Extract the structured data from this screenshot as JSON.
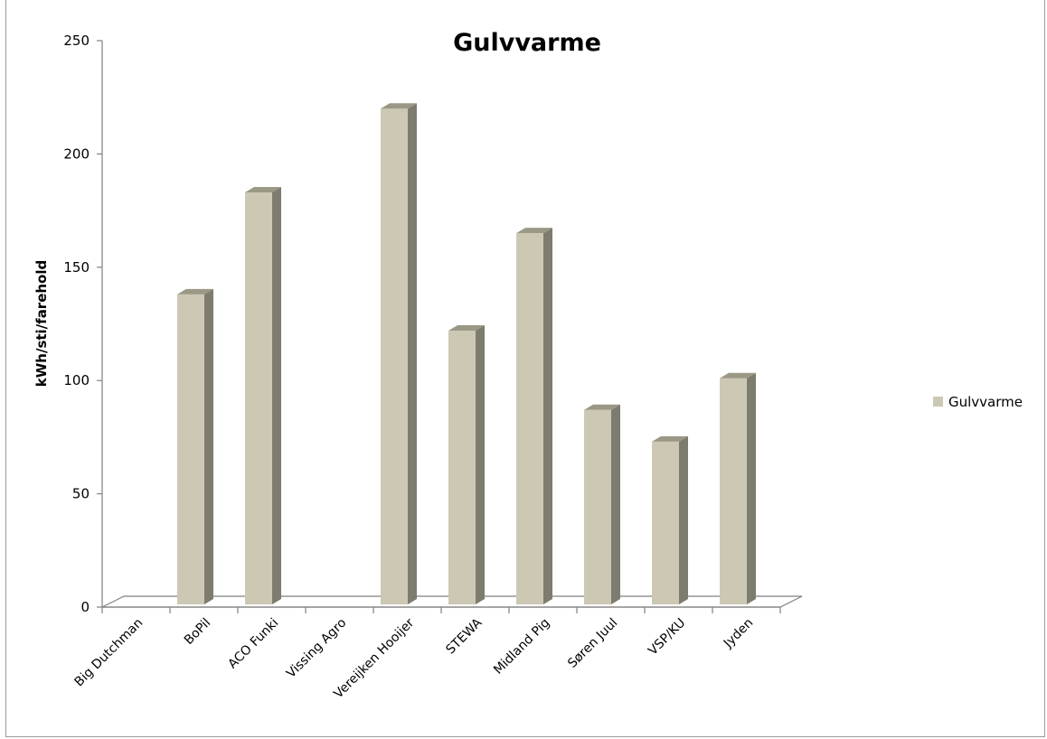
{
  "chart_data": {
    "type": "bar",
    "title": "Gulvvarme",
    "xlabel": "",
    "ylabel": "kWh/sti/farehold",
    "categories": [
      "Big Dutchman",
      "BoPil",
      "ACO Funki",
      "Vissing Agro",
      "Vereijken Hooijer",
      "STEWA",
      "Midland Pig",
      "Søren Juul",
      "VSP/KU",
      "Jyden"
    ],
    "series": [
      {
        "name": "Gulvvarme",
        "values": [
          0,
          138,
          183,
          0,
          220,
          122,
          165,
          87,
          73,
          101
        ]
      }
    ],
    "ylim": [
      0,
      250
    ],
    "yticks": [
      "0",
      "50",
      "100",
      "150",
      "200",
      "250"
    ],
    "grid": false,
    "legend_position": "right",
    "style": "3d-column",
    "colors": {
      "bar_front": "#ccc8b4",
      "bar_side": "#7e7c6e",
      "bar_top": "#9b9886",
      "axis": "#808080"
    }
  }
}
